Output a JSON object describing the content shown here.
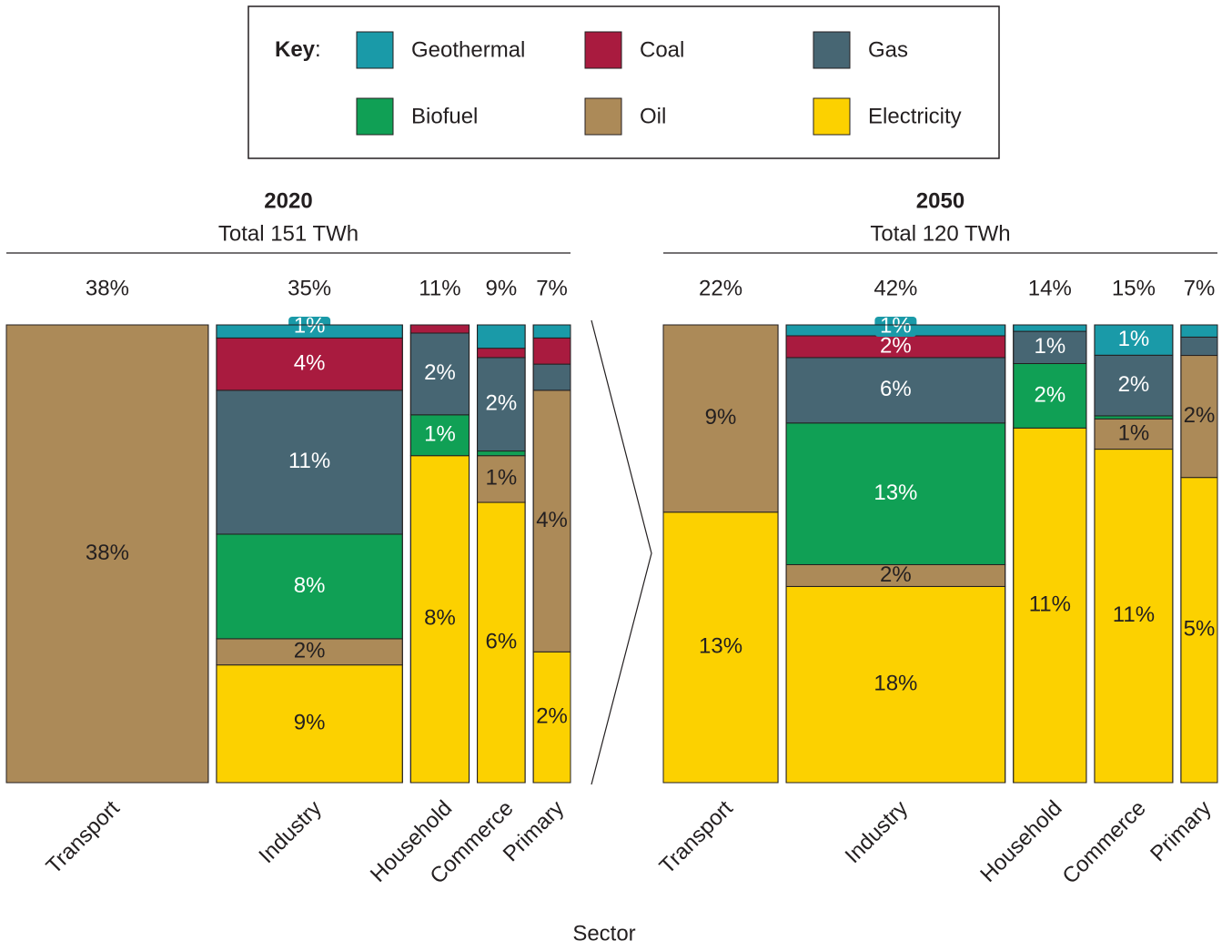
{
  "chart_data": {
    "type": "mekko",
    "key": {
      "text": "Key",
      "punctuation": ":"
    },
    "xlabel": "Sector",
    "series": [
      {
        "name": "Geothermal",
        "color": "#1a9aa8"
      },
      {
        "name": "Coal",
        "color": "#a91b3f"
      },
      {
        "name": "Gas",
        "color": "#476673"
      },
      {
        "name": "Biofuel",
        "color": "#10a055"
      },
      {
        "name": "Oil",
        "color": "#ac8a58"
      },
      {
        "name": "Electricity",
        "color": "#fcd100"
      }
    ],
    "panels": [
      {
        "title": "2020",
        "subtitle": "Total 151 TWh",
        "categories": [
          "Transport",
          "Industry",
          "Household",
          "Commerce",
          "Primary"
        ],
        "shares": [
          38,
          35,
          11,
          9,
          7
        ],
        "share_labels": [
          "38%",
          "35%",
          "11%",
          "9%",
          "7%"
        ],
        "values": [
          [
            null,
            1,
            null,
            0.5,
            0.2
          ],
          [
            null,
            4,
            0.2,
            0.2,
            0.4
          ],
          [
            null,
            11,
            2,
            2,
            0.4
          ],
          [
            null,
            8,
            1,
            0.1,
            null
          ],
          [
            38,
            2,
            null,
            1,
            4
          ],
          [
            null,
            9,
            8,
            6,
            2
          ]
        ],
        "value_labels": [
          [
            null,
            "1%",
            null,
            null,
            null
          ],
          [
            null,
            "4%",
            null,
            null,
            null
          ],
          [
            null,
            "11%",
            "2%",
            "2%",
            null
          ],
          [
            null,
            "8%",
            "1%",
            null,
            null
          ],
          [
            "38%",
            "2%",
            null,
            "1%",
            "4%"
          ],
          [
            null,
            "9%",
            "8%",
            "6%",
            "2%"
          ]
        ]
      },
      {
        "title": "2050",
        "subtitle": "Total 120 TWh",
        "categories": [
          "Transport",
          "Industry",
          "Household",
          "Commerce",
          "Primary"
        ],
        "shares": [
          22,
          42,
          14,
          15,
          7
        ],
        "share_labels": [
          "22%",
          "42%",
          "14%",
          "15%",
          "7%"
        ],
        "values": [
          [
            null,
            1,
            0.2,
            1,
            0.2
          ],
          [
            null,
            2,
            null,
            null,
            null
          ],
          [
            null,
            6,
            1,
            2,
            0.3
          ],
          [
            null,
            13,
            2,
            0.1,
            null
          ],
          [
            9,
            2,
            null,
            1,
            2
          ],
          [
            13,
            18,
            11,
            11,
            5
          ]
        ],
        "value_labels": [
          [
            null,
            "1%",
            null,
            "1%",
            null
          ],
          [
            null,
            "2%",
            null,
            null,
            null
          ],
          [
            null,
            "6%",
            "1%",
            "2%",
            null
          ],
          [
            null,
            "13%",
            "2%",
            null,
            null
          ],
          [
            "9%",
            "2%",
            null,
            "1%",
            "2%"
          ],
          [
            "13%",
            "18%",
            "11%",
            "11%",
            "5%"
          ]
        ]
      }
    ]
  }
}
